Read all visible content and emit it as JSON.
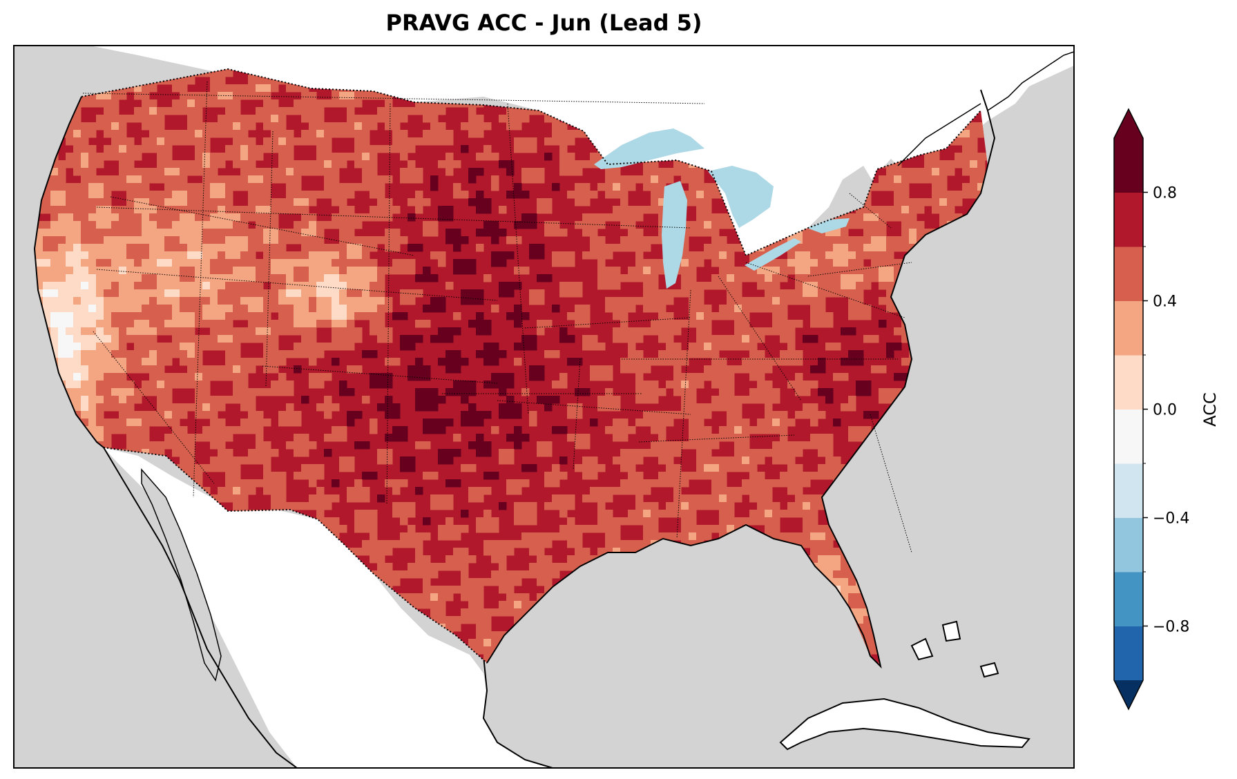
{
  "title": "PRAVG ACC - Jun (Lead 5)",
  "colorbar": {
    "label": "ACC",
    "ticks": [
      "0.8",
      "0.4",
      "0.0",
      "−0.4",
      "−0.8"
    ],
    "tick_values": [
      0.8,
      0.4,
      0.0,
      -0.4,
      -0.8
    ],
    "levels": [
      -1.0,
      -0.8,
      -0.6,
      -0.4,
      -0.2,
      0.0,
      0.2,
      0.4,
      0.6,
      0.8,
      1.0
    ],
    "colors": [
      "#053061",
      "#2166ac",
      "#4393c3",
      "#92c5de",
      "#d1e5f0",
      "#f7f7f7",
      "#fddbc7",
      "#f4a582",
      "#d6604d",
      "#b2182b",
      "#67001f"
    ],
    "extend": "both"
  },
  "map_colors": {
    "ocean": "#d3d3d3",
    "land_outside": "#ffffff",
    "lakes": "#add8e6",
    "conus_base": "#b2182b",
    "coast": "#000000"
  }
}
